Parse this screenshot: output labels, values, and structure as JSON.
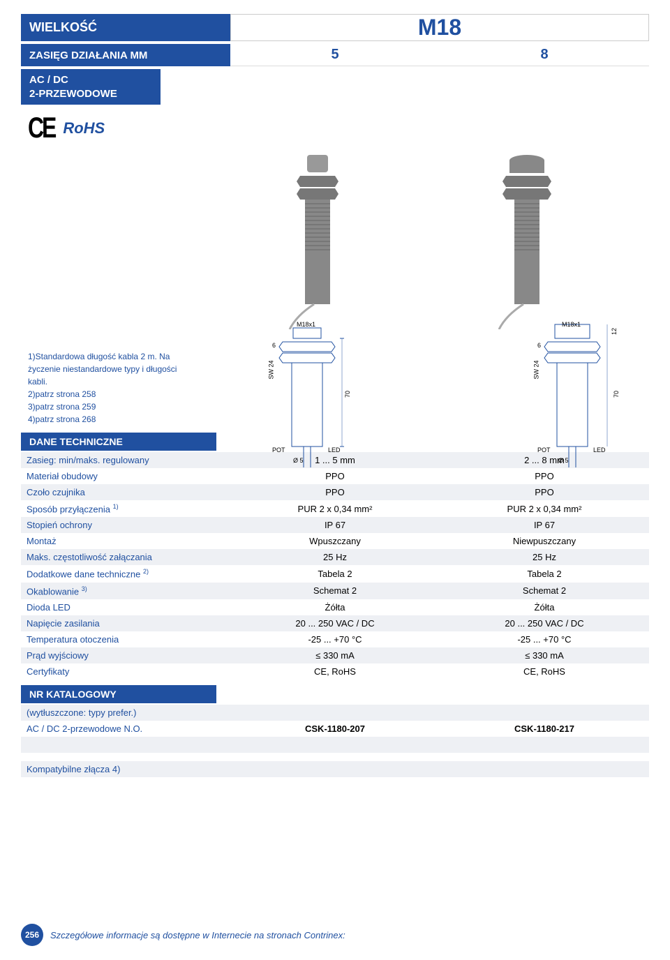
{
  "header": {
    "size_label": "WIELKOŚĆ",
    "model": "M18",
    "range_label": "ZASIĘG DZIAŁANIA MM",
    "range_vals": [
      "5",
      "8"
    ],
    "type_label": "AC / DC\n2-PRZEWODOWE"
  },
  "logos": {
    "ce": "CE",
    "rohs": "RoHS"
  },
  "footnotes": {
    "f1": "1)Standardowa długość kabla 2 m. Na życzenie niestandardowe typy i długości kabli.",
    "f2": "2)patrz strona 258",
    "f3": "3)patrz strona 259",
    "f4": "4)patrz strona 268"
  },
  "diagram": {
    "thread": "M18x1",
    "sw": "SW 24",
    "pot": "POT",
    "led": "LED",
    "d5": "Ø 5",
    "h6": "6",
    "h70": "70",
    "h12": "12"
  },
  "sections": {
    "tech": "DANE TECHNICZNE",
    "nr": "NR KATALOGOWY"
  },
  "specs": [
    {
      "label": "Zasieg: min/maks. regulowany",
      "v1": "1 ... 5 mm",
      "v2": "2 ... 8 mm"
    },
    {
      "label": "Materiał obudowy",
      "v1": "PPO",
      "v2": "PPO"
    },
    {
      "label": "Czoło czujnika",
      "v1": "PPO",
      "v2": "PPO"
    },
    {
      "label": "Sposób przyłączenia 1)",
      "v1": "PUR 2 x 0,34 mm²",
      "v2": "PUR 2 x 0,34 mm²",
      "sup1": true
    },
    {
      "label": "Stopień ochrony",
      "v1": "IP 67",
      "v2": "IP 67"
    },
    {
      "label": "Montaż",
      "v1": "Wpuszczany",
      "v2": "Niewpuszczany"
    },
    {
      "label": "Maks. częstotliwość załączania",
      "v1": "25 Hz",
      "v2": "25 Hz"
    },
    {
      "label": "Dodatkowe dane techniczne 2)",
      "v1": "Tabela 2",
      "v2": "Tabela 2",
      "sup2": true
    },
    {
      "label": "Okablowanie 3)",
      "v1": "Schemat 2",
      "v2": "Schemat 2",
      "sup3": true
    },
    {
      "label": "Dioda LED",
      "v1": "Żółta",
      "v2": "Żółta"
    },
    {
      "label": "Napięcie zasilania",
      "v1": "20 ... 250 VAC / DC",
      "v2": "20 ... 250 VAC / DC"
    },
    {
      "label": "Temperatura otoczenia",
      "v1": "-25 ... +70 °C",
      "v2": "-25 ... +70 °C"
    },
    {
      "label": "Prąd wyjściowy",
      "v1": "≤ 330 mA",
      "v2": "≤ 330 mA"
    },
    {
      "label": "Certyfikaty",
      "v1": "CE, RoHS",
      "v2": "CE, RoHS"
    }
  ],
  "nr": {
    "bold_note": "(wytłuszczone: typy prefer.)",
    "row_label": "AC / DC 2-przewodowe N.O.",
    "v1": "CSK-1180-207",
    "v2": "CSK-1180-217",
    "compat": "Kompatybilne złącza 4)"
  },
  "footer": {
    "page": "256",
    "text": "Szczegółowe informacje są dostępne w Internecie na stronach Contrinex:"
  },
  "colors": {
    "blue": "#2050a0",
    "lightrow": "#eef0f4"
  }
}
